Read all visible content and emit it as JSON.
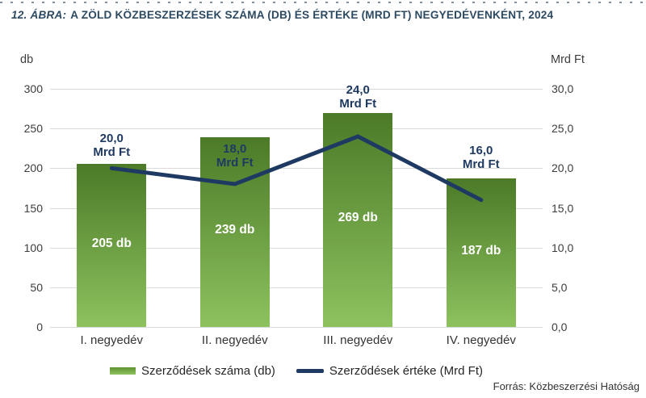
{
  "title": {
    "prefix": "12. ÁBRA:",
    "text": "A ZÖLD KÖZBESZERZÉSEK SZÁMA (DB) ÉS ÉRTÉKE (MRD FT) NEGYEDÉVENKÉNT, 2024"
  },
  "source": "Forrás: Közbeszerzési Hatóság",
  "colors": {
    "bar_gradient_top": "#4c7a28",
    "bar_gradient_bottom": "#8dc25e",
    "line": "#1f3a62",
    "title": "#2d4a63",
    "grid": "#d9d9d9"
  },
  "chart_data": {
    "type": "bar+line combo",
    "categories": [
      "I. negyedév",
      "II. negyedév",
      "III. negyedév",
      "IV. negyedév"
    ],
    "series": [
      {
        "name": "Szerződések száma (db)",
        "type": "bar",
        "axis": "left",
        "values": [
          205,
          239,
          269,
          187
        ],
        "labels": [
          "205 db",
          "239 db",
          "269 db",
          "187 db"
        ]
      },
      {
        "name": "Szerződések értéke (Mrd Ft)",
        "type": "line",
        "axis": "right",
        "values": [
          20.0,
          18.0,
          24.0,
          16.0
        ],
        "labels": [
          "20,0\nMrd Ft",
          "18,0\nMrd Ft",
          "24,0\nMrd Ft",
          "16,0\nMrd Ft"
        ]
      }
    ],
    "left_axis": {
      "title": "db",
      "min": 0,
      "max": 300,
      "ticks": [
        "300",
        "250",
        "200",
        "150",
        "100",
        "50",
        "0"
      ]
    },
    "right_axis": {
      "title": "Mrd Ft",
      "min": 0,
      "max": 30,
      "ticks": [
        "30,0",
        "25,0",
        "20,0",
        "15,0",
        "10,0",
        "5,0",
        "0,0"
      ]
    },
    "grid": "horizontal only",
    "legend_position": "bottom center"
  }
}
